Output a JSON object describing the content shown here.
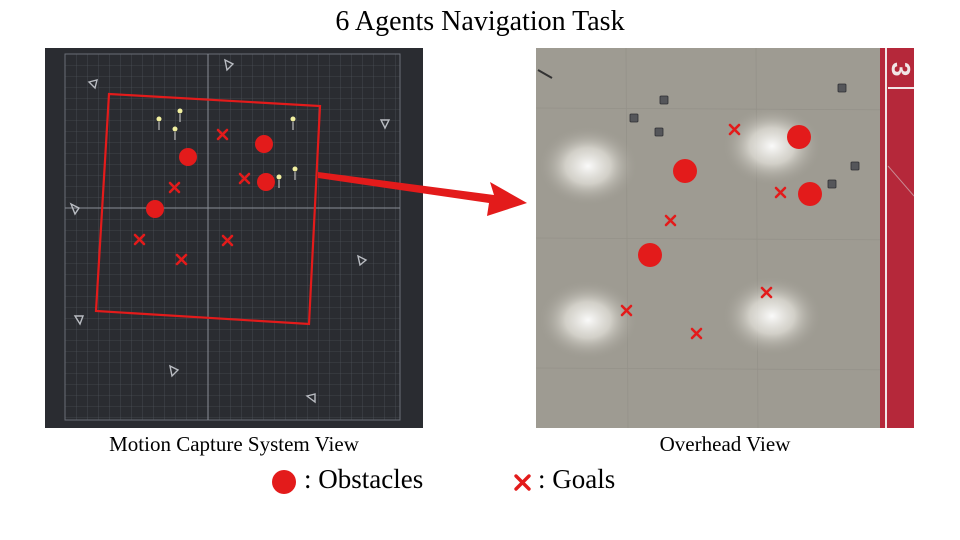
{
  "title": "6 Agents Navigation Task",
  "left_panel": {
    "caption": "Motion Capture System View"
  },
  "right_panel": {
    "caption": "Overhead View",
    "floor_marking": "3"
  },
  "legend": {
    "obstacles_label": ": Obstacles",
    "goals_label": ": Goals"
  },
  "colors": {
    "accent": "#e31b1b",
    "mocap_bg": "#2a2c31",
    "floor": "#9e9b92",
    "red_stripe": "#b5283a"
  }
}
